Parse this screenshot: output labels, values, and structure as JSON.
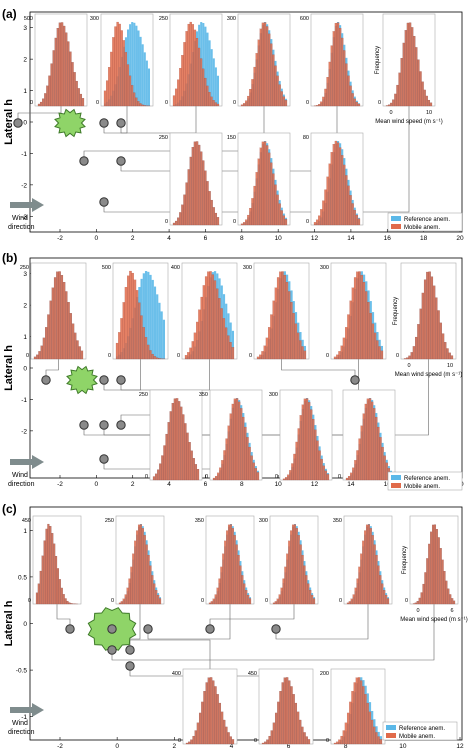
{
  "colors": {
    "reference": "#5bb8e8",
    "mobile": "#e06a4a",
    "overlap": "#b05a4a",
    "tree_fill": "#8fd468",
    "tree_stroke": "#3f7a2a",
    "tree_center": "#c53b3b",
    "line": "#666666",
    "circle_fill": "#8a8a8a",
    "arrow": "#7f8c8d",
    "box": "#aaaaaa"
  },
  "chart_data": [
    {
      "type": "histogram-array",
      "panel_label": "(a)",
      "ylabel": "Lateral h",
      "xlim": [
        -3,
        20
      ],
      "ylim": [
        -3,
        3
      ],
      "xticks": [
        "-2",
        "0",
        "2",
        "4",
        "6",
        "8",
        "10",
        "12",
        "14",
        "16",
        "18",
        "20"
      ],
      "yticks": [
        "3",
        "2",
        "1",
        "0",
        "-1",
        "-2",
        "-3"
      ],
      "wind_label": [
        "Wind",
        "direction"
      ],
      "legend": [
        "Reference anem.",
        "Mobile anem."
      ],
      "inset_xlabel": "Mean wind speed (m s⁻¹)",
      "inset_ylabel": "Frequency",
      "inset_xticks": [
        "0",
        "10"
      ],
      "obstacle": {
        "shape": "tree-round",
        "x": -1,
        "y": 0
      },
      "sensor_points": [
        [
          -2.5,
          0
        ],
        [
          -1.5,
          0
        ],
        [
          -0.2,
          0
        ],
        [
          1,
          0
        ],
        [
          0,
          -0.8
        ],
        [
          2,
          -0.8
        ],
        [
          1,
          -2.2
        ]
      ],
      "histograms": [
        {
          "ymax": "500",
          "ref_mean": 0.5,
          "mob_mean": 0.5,
          "ref_sd": 0.35,
          "mob_sd": 0.35
        },
        {
          "ymax": "300",
          "ref_mean": 0.62,
          "mob_mean": 0.3,
          "ref_sd": 0.45,
          "mob_sd": 0.3
        },
        {
          "ymax": "250",
          "ref_mean": 0.62,
          "mob_mean": 0.38,
          "ref_sd": 0.4,
          "mob_sd": 0.35
        },
        {
          "ymax": "300",
          "ref_mean": 0.52,
          "mob_mean": 0.5,
          "ref_sd": 0.33,
          "mob_sd": 0.33
        },
        {
          "ymax": "600",
          "ref_mean": 0.52,
          "mob_mean": 0.5,
          "ref_sd": 0.28,
          "mob_sd": 0.28
        },
        {
          "ymax": "",
          "ref_mean": 0.5,
          "mob_mean": 0.5,
          "ref_sd": 0.3,
          "mob_sd": 0.3
        },
        {
          "ymax": "250",
          "ref_mean": 0.5,
          "mob_mean": 0.5,
          "ref_sd": 0.35,
          "mob_sd": 0.35
        },
        {
          "ymax": "150",
          "ref_mean": 0.52,
          "mob_mean": 0.5,
          "ref_sd": 0.33,
          "mob_sd": 0.33
        },
        {
          "ymax": "80",
          "ref_mean": 0.52,
          "mob_mean": 0.48,
          "ref_sd": 0.33,
          "mob_sd": 0.35
        }
      ]
    },
    {
      "type": "histogram-array",
      "panel_label": "(b)",
      "ylabel": "Lateral h",
      "xlim": [
        -3,
        20
      ],
      "ylim": [
        -3,
        3
      ],
      "xticks": [
        "-2",
        "0",
        "2",
        "4",
        "6",
        "8",
        "10",
        "12",
        "14",
        "16",
        "18",
        "20"
      ],
      "yticks": [
        "3",
        "2",
        "1",
        "0",
        "-1",
        "-2",
        "-3"
      ],
      "wind_label": [
        "Wind",
        "direction"
      ],
      "legend": [
        "Reference anem.",
        "Mobile anem."
      ],
      "inset_xlabel": "Mean wind speed (m s⁻¹)",
      "inset_ylabel": "Frequency",
      "inset_xticks": [
        "0",
        "10"
      ],
      "obstacle": {
        "shape": "tree-round",
        "x": 0,
        "y": 0
      },
      "sensor_points": [
        [
          -1.5,
          0
        ],
        [
          1,
          0
        ],
        [
          2,
          0
        ],
        [
          4,
          0
        ],
        [
          8,
          0
        ],
        [
          12,
          0
        ],
        [
          16,
          0
        ],
        [
          0,
          -0.8
        ],
        [
          1.5,
          -0.8
        ],
        [
          1,
          -0.8
        ],
        [
          0,
          -1.5
        ],
        [
          1,
          -1.5
        ],
        [
          1,
          -2.2
        ]
      ],
      "histograms": [
        {
          "ymax": "250",
          "ref_mean": 0.5,
          "mob_mean": 0.5,
          "ref_sd": 0.35,
          "mob_sd": 0.35
        },
        {
          "ymax": "500",
          "ref_mean": 0.62,
          "mob_mean": 0.3,
          "ref_sd": 0.45,
          "mob_sd": 0.3
        },
        {
          "ymax": "400",
          "ref_mean": 0.6,
          "mob_mean": 0.5,
          "ref_sd": 0.4,
          "mob_sd": 0.38
        },
        {
          "ymax": "300",
          "ref_mean": 0.55,
          "mob_mean": 0.5,
          "ref_sd": 0.35,
          "mob_sd": 0.35
        },
        {
          "ymax": "300",
          "ref_mean": 0.55,
          "mob_mean": 0.5,
          "ref_sd": 0.35,
          "mob_sd": 0.35
        },
        {
          "ymax": "",
          "ref_mean": 0.5,
          "mob_mean": 0.5,
          "ref_sd": 0.3,
          "mob_sd": 0.3
        },
        {
          "ymax": "250",
          "ref_mean": 0.5,
          "mob_mean": 0.5,
          "ref_sd": 0.38,
          "mob_sd": 0.38
        },
        {
          "ymax": "350",
          "ref_mean": 0.52,
          "mob_mean": 0.5,
          "ref_sd": 0.35,
          "mob_sd": 0.35
        },
        {
          "ymax": "300",
          "ref_mean": 0.52,
          "mob_mean": 0.5,
          "ref_sd": 0.33,
          "mob_sd": 0.33
        },
        {
          "ymax": "",
          "ref_mean": 0.52,
          "mob_mean": 0.5,
          "ref_sd": 0.35,
          "mob_sd": 0.35
        }
      ]
    },
    {
      "type": "histogram-array",
      "panel_label": "(c)",
      "ylabel": "Lateral h",
      "xlim": [
        -2.5,
        12
      ],
      "ylim": [
        -1.5,
        1.5
      ],
      "xticks": [
        "-2",
        "0",
        "2",
        "4",
        "6",
        "8",
        "10",
        "12"
      ],
      "yticks": [
        "1",
        "0.5",
        "0",
        "-0.5",
        "-1"
      ],
      "wind_label": [
        "Wind",
        "direction"
      ],
      "legend": [
        "Reference anem.",
        "Mobile anem."
      ],
      "inset_xlabel": "Mean wind speed (m s⁻¹)",
      "inset_ylabel": "Frequency",
      "inset_xticks": [
        "0",
        "6"
      ],
      "obstacle": {
        "shape": "tree-irregular",
        "x": 0,
        "y": 0
      },
      "sensor_points": [
        [
          -1.2,
          0
        ],
        [
          0,
          0
        ],
        [
          1,
          0
        ],
        [
          2.5,
          0
        ],
        [
          4,
          0
        ],
        [
          7,
          0
        ],
        [
          0,
          -0.3
        ],
        [
          0.5,
          -0.3
        ],
        [
          0.5,
          -0.6
        ]
      ],
      "histograms": [
        {
          "ymax": "450",
          "ref_mean": 0.3,
          "mob_mean": 0.3,
          "ref_sd": 0.28,
          "mob_sd": 0.28
        },
        {
          "ymax": "250",
          "ref_mean": 0.52,
          "mob_mean": 0.5,
          "ref_sd": 0.33,
          "mob_sd": 0.33
        },
        {
          "ymax": "350",
          "ref_mean": 0.52,
          "mob_mean": 0.5,
          "ref_sd": 0.33,
          "mob_sd": 0.33
        },
        {
          "ymax": "300",
          "ref_mean": 0.52,
          "mob_mean": 0.5,
          "ref_sd": 0.33,
          "mob_sd": 0.33
        },
        {
          "ymax": "350",
          "ref_mean": 0.52,
          "mob_mean": 0.5,
          "ref_sd": 0.33,
          "mob_sd": 0.33
        },
        {
          "ymax": "",
          "ref_mean": 0.5,
          "mob_mean": 0.5,
          "ref_sd": 0.3,
          "mob_sd": 0.3
        },
        {
          "ymax": "400",
          "ref_mean": 0.5,
          "mob_mean": 0.5,
          "ref_sd": 0.33,
          "mob_sd": 0.33
        },
        {
          "ymax": "450",
          "ref_mean": 0.5,
          "mob_mean": 0.5,
          "ref_sd": 0.33,
          "mob_sd": 0.33
        },
        {
          "ymax": "200",
          "ref_mean": 0.55,
          "mob_mean": 0.5,
          "ref_sd": 0.33,
          "mob_sd": 0.33
        }
      ]
    }
  ]
}
